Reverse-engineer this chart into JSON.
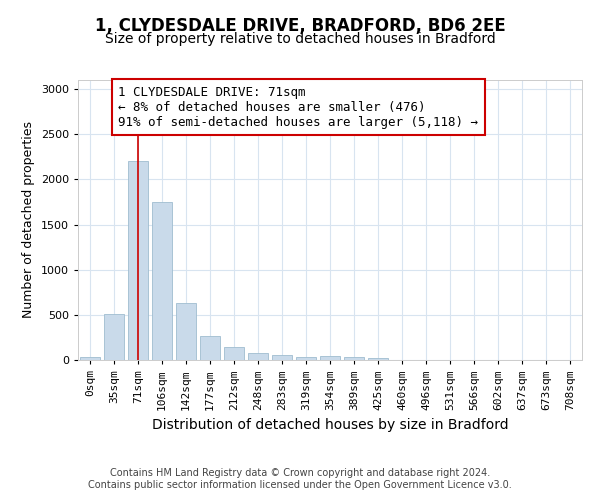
{
  "title1": "1, CLYDESDALE DRIVE, BRADFORD, BD6 2EE",
  "title2": "Size of property relative to detached houses in Bradford",
  "xlabel": "Distribution of detached houses by size in Bradford",
  "ylabel": "Number of detached properties",
  "categories": [
    "0sqm",
    "35sqm",
    "71sqm",
    "106sqm",
    "142sqm",
    "177sqm",
    "212sqm",
    "248sqm",
    "283sqm",
    "319sqm",
    "354sqm",
    "389sqm",
    "425sqm",
    "460sqm",
    "496sqm",
    "531sqm",
    "566sqm",
    "602sqm",
    "637sqm",
    "673sqm",
    "708sqm"
  ],
  "values": [
    30,
    510,
    2200,
    1750,
    630,
    265,
    140,
    75,
    50,
    35,
    40,
    30,
    25,
    5,
    5,
    5,
    5,
    5,
    5,
    5,
    5
  ],
  "bar_color": "#c9daea",
  "bar_edge_color": "#a0bdd0",
  "highlight_bar_index": 2,
  "highlight_line_color": "#cc0000",
  "ylim": [
    0,
    3100
  ],
  "yticks": [
    0,
    500,
    1000,
    1500,
    2000,
    2500,
    3000
  ],
  "annotation_text": "1 CLYDESDALE DRIVE: 71sqm\n← 8% of detached houses are smaller (476)\n91% of semi-detached houses are larger (5,118) →",
  "annotation_box_facecolor": "#ffffff",
  "annotation_box_edgecolor": "#cc0000",
  "footer": "Contains HM Land Registry data © Crown copyright and database right 2024.\nContains public sector information licensed under the Open Government Licence v3.0.",
  "background_color": "#ffffff",
  "plot_background": "#ffffff",
  "grid_color": "#d8e4f0",
  "title_fontsize": 12,
  "subtitle_fontsize": 10,
  "tick_fontsize": 8,
  "ylabel_fontsize": 9,
  "xlabel_fontsize": 10,
  "footer_fontsize": 7,
  "annotation_fontsize": 9
}
